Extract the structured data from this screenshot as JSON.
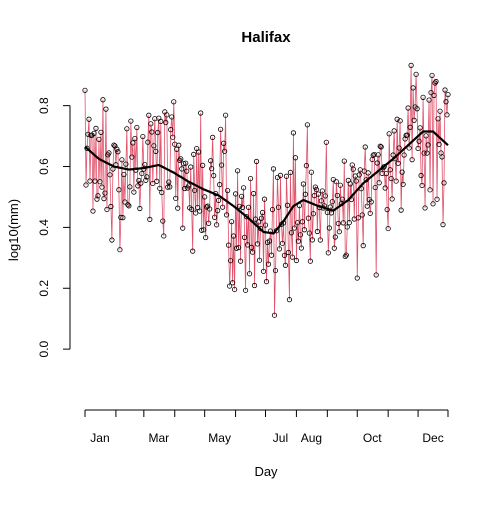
{
  "chart_data": {
    "type": "line",
    "title": "Halifax",
    "xlabel": "Day",
    "ylabel": "log10(mm)",
    "xlim": [
      1,
      365
    ],
    "ylim": [
      -0.2,
      0.95
    ],
    "x_ticks": {
      "positions": [
        1,
        32,
        60,
        91,
        121,
        152,
        182,
        213,
        244,
        274,
        305,
        335,
        365
      ],
      "labels": [
        {
          "day": 16,
          "label": "Jan"
        },
        {
          "day": 75,
          "label": "Mar"
        },
        {
          "day": 136,
          "label": "May"
        },
        {
          "day": 197,
          "label": "Jul"
        },
        {
          "day": 228,
          "label": "Aug"
        },
        {
          "day": 289,
          "label": "Oct"
        },
        {
          "day": 350,
          "label": "Dec"
        }
      ]
    },
    "y_ticks": {
      "values": [
        0.0,
        0.2,
        0.4,
        0.6,
        0.8
      ],
      "labels": [
        "0.0",
        "0.2",
        "0.4",
        "0.6",
        "0.8"
      ]
    },
    "grid": false,
    "legend": "none",
    "series": [
      {
        "role": "daily observations (points)",
        "color": "#000000",
        "style": "open circles",
        "x_range": [
          1,
          365
        ]
      },
      {
        "role": "daily observations (line)",
        "color": "#DF536B",
        "style": "thin line"
      },
      {
        "role": "smooth",
        "color": "#000000",
        "style": "thick line",
        "x": [
          1,
          15,
          30,
          45,
          60,
          75,
          90,
          105,
          120,
          135,
          150,
          165,
          180,
          190,
          200,
          210,
          220,
          235,
          250,
          265,
          280,
          295,
          310,
          325,
          340,
          350,
          365
        ],
        "y": [
          0.665,
          0.625,
          0.6,
          0.59,
          0.595,
          0.605,
          0.58,
          0.55,
          0.525,
          0.505,
          0.47,
          0.43,
          0.385,
          0.38,
          0.42,
          0.47,
          0.49,
          0.47,
          0.455,
          0.49,
          0.545,
          0.585,
          0.625,
          0.67,
          0.715,
          0.715,
          0.67
        ]
      }
    ]
  }
}
